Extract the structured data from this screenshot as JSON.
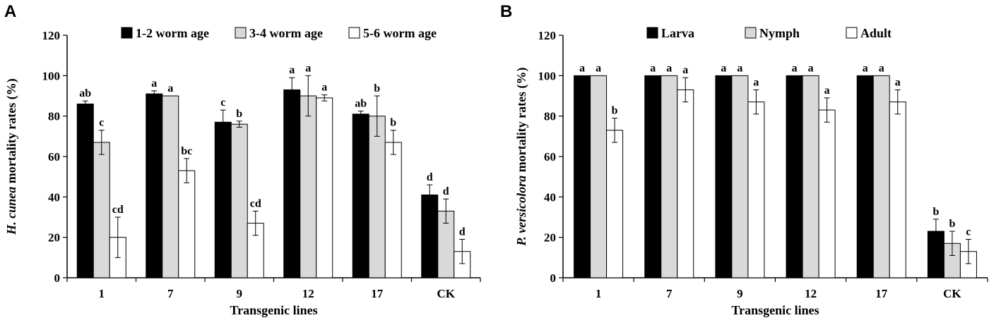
{
  "figure": {
    "colors": {
      "black": "#000000",
      "gray": "#d9d9d9",
      "white": "#ffffff"
    }
  },
  "chart_data": [
    {
      "panel": "A",
      "type": "bar",
      "title": "",
      "xlabel": "Transgenic lines",
      "ylabel": {
        "italic": "H. cunea",
        "rest": " mortality rates (%)"
      },
      "ylim": [
        0,
        120
      ],
      "yticks": [
        0,
        20,
        40,
        60,
        80,
        100,
        120
      ],
      "categories": [
        "1",
        "7",
        "9",
        "12",
        "17",
        "CK"
      ],
      "series": [
        {
          "name": "1-2 worm age",
          "color": "#000000",
          "values": [
            86,
            91,
            77,
            93,
            81,
            41
          ],
          "errors": [
            1.5,
            1.5,
            6,
            6,
            1.5,
            5
          ],
          "labels": [
            "ab",
            "a",
            "c",
            "a",
            "ab",
            "d"
          ]
        },
        {
          "name": "3-4 worm age",
          "color": "#d9d9d9",
          "values": [
            67,
            90,
            76,
            90,
            80,
            33
          ],
          "errors": [
            6,
            0,
            1.5,
            10,
            10,
            6
          ],
          "labels": [
            "c",
            "a",
            "b",
            "a",
            "b",
            "d"
          ]
        },
        {
          "name": "5-6 worm age",
          "color": "#ffffff",
          "values": [
            20,
            53,
            27,
            89,
            67,
            13
          ],
          "errors": [
            10,
            6,
            6,
            1.5,
            6,
            6
          ],
          "labels": [
            "cd",
            "bc",
            "cd",
            "a",
            "b",
            "d"
          ]
        }
      ],
      "legend": "top"
    },
    {
      "panel": "B",
      "type": "bar",
      "title": "",
      "xlabel": "Transgenic lines",
      "ylabel": {
        "italic": "P. versicolora",
        "rest": " mortality rates  (%)"
      },
      "ylim": [
        0,
        120
      ],
      "yticks": [
        0,
        20,
        40,
        60,
        80,
        100,
        120
      ],
      "categories": [
        "1",
        "7",
        "9",
        "12",
        "17",
        "CK"
      ],
      "series": [
        {
          "name": "Larva",
          "color": "#000000",
          "values": [
            100,
            100,
            100,
            100,
            100,
            23
          ],
          "errors": [
            0,
            0,
            0,
            0,
            0,
            6
          ],
          "labels": [
            "a",
            "a",
            "a",
            "a",
            "a",
            "b"
          ]
        },
        {
          "name": "Nymph",
          "color": "#d9d9d9",
          "values": [
            100,
            100,
            100,
            100,
            100,
            17
          ],
          "errors": [
            0,
            0,
            0,
            0,
            0,
            6
          ],
          "labels": [
            "a",
            "a",
            "a",
            "a",
            "a",
            "b"
          ]
        },
        {
          "name": "Adult",
          "color": "#ffffff",
          "values": [
            73,
            93,
            87,
            83,
            87,
            13
          ],
          "errors": [
            6,
            6,
            6,
            6,
            6,
            6
          ],
          "labels": [
            "b",
            "a",
            "a",
            "a",
            "a",
            "c"
          ]
        }
      ],
      "legend": "top"
    }
  ]
}
